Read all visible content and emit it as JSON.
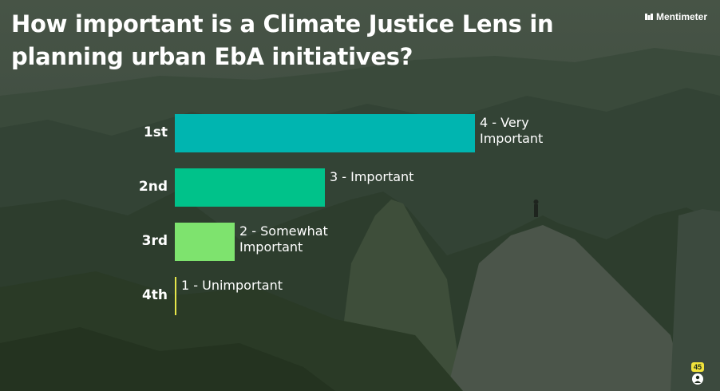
{
  "slide": {
    "title": "How important is a Climate Justice Lens in planning urban EbA initiatives?",
    "brand": "Mentimeter"
  },
  "chart_data": {
    "type": "bar",
    "orientation": "horizontal",
    "categories": [
      "4 - Very Important",
      "3 - Important",
      "2 - Somewhat Important",
      "1 - Unimportant"
    ],
    "ranks": [
      "1st",
      "2nd",
      "3rd",
      "4th"
    ],
    "values": [
      1.0,
      0.5,
      0.2,
      0.0
    ],
    "colors": [
      "#00b5b0",
      "#00c28a",
      "#7ee36e",
      "#e6e64a"
    ],
    "title": "How important is a Climate Justice Lens in planning urban EbA initiatives?",
    "grid": false,
    "legend": "none"
  },
  "footer": {
    "respondent_count": "45",
    "icons": {
      "respondents": "person-icon",
      "brand": "mentimeter-logo-icon"
    }
  }
}
